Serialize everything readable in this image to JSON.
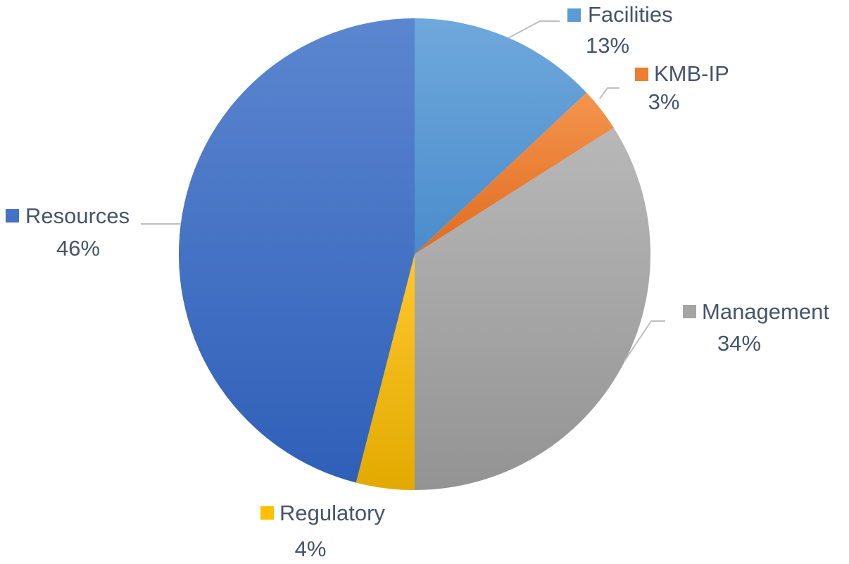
{
  "chart_data": {
    "type": "pie",
    "title": "",
    "slices": [
      {
        "label": "Facilities",
        "percent_label": "13%",
        "value": 13,
        "color": "#5b9bd5",
        "color_light": "#6fa8dc",
        "color_dark": "#4a8ccc"
      },
      {
        "label": "KMB-IP",
        "percent_label": "3%",
        "value": 3,
        "color": "#ed7d31",
        "color_light": "#f4944e",
        "color_dark": "#e06c1e"
      },
      {
        "label": "Management",
        "percent_label": "34%",
        "value": 34,
        "color": "#a5a5a5",
        "color_light": "#b8b8b8",
        "color_dark": "#939393"
      },
      {
        "label": "Regulatory",
        "percent_label": "4%",
        "value": 4,
        "color": "#ffc000",
        "color_light": "#ffc72c",
        "color_dark": "#e2aa00"
      },
      {
        "label": "Resources",
        "percent_label": "46%",
        "value": 46,
        "color": "#4472c4",
        "color_light": "#5b86d0",
        "color_dark": "#2f5fb8"
      }
    ],
    "start_angle_deg": 0,
    "direction": "clockwise",
    "legend": "none",
    "data_labels": "outside, with category swatch, name and percentage"
  }
}
